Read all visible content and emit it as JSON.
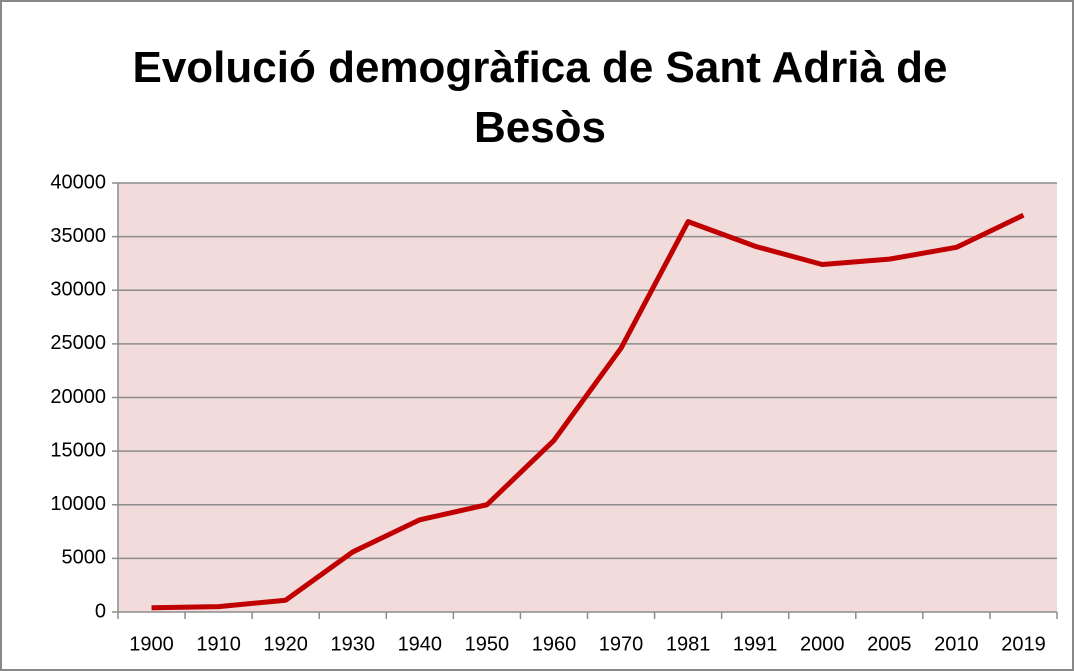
{
  "chart_data": {
    "type": "line",
    "title": "Evolució demogràfica de Sant Adrià de Besòs",
    "categories": [
      "1900",
      "1910",
      "1920",
      "1930",
      "1940",
      "1950",
      "1960",
      "1970",
      "1981",
      "1991",
      "2000",
      "2005",
      "2010",
      "2019"
    ],
    "values": [
      400,
      500,
      1100,
      5600,
      8600,
      10000,
      16000,
      24600,
      36400,
      34100,
      32400,
      32900,
      34000,
      37000
    ],
    "color": "#c00000",
    "ylim": [
      0,
      40000
    ],
    "yticks": [
      0,
      5000,
      10000,
      15000,
      20000,
      25000,
      30000,
      35000,
      40000
    ],
    "grid": true
  }
}
